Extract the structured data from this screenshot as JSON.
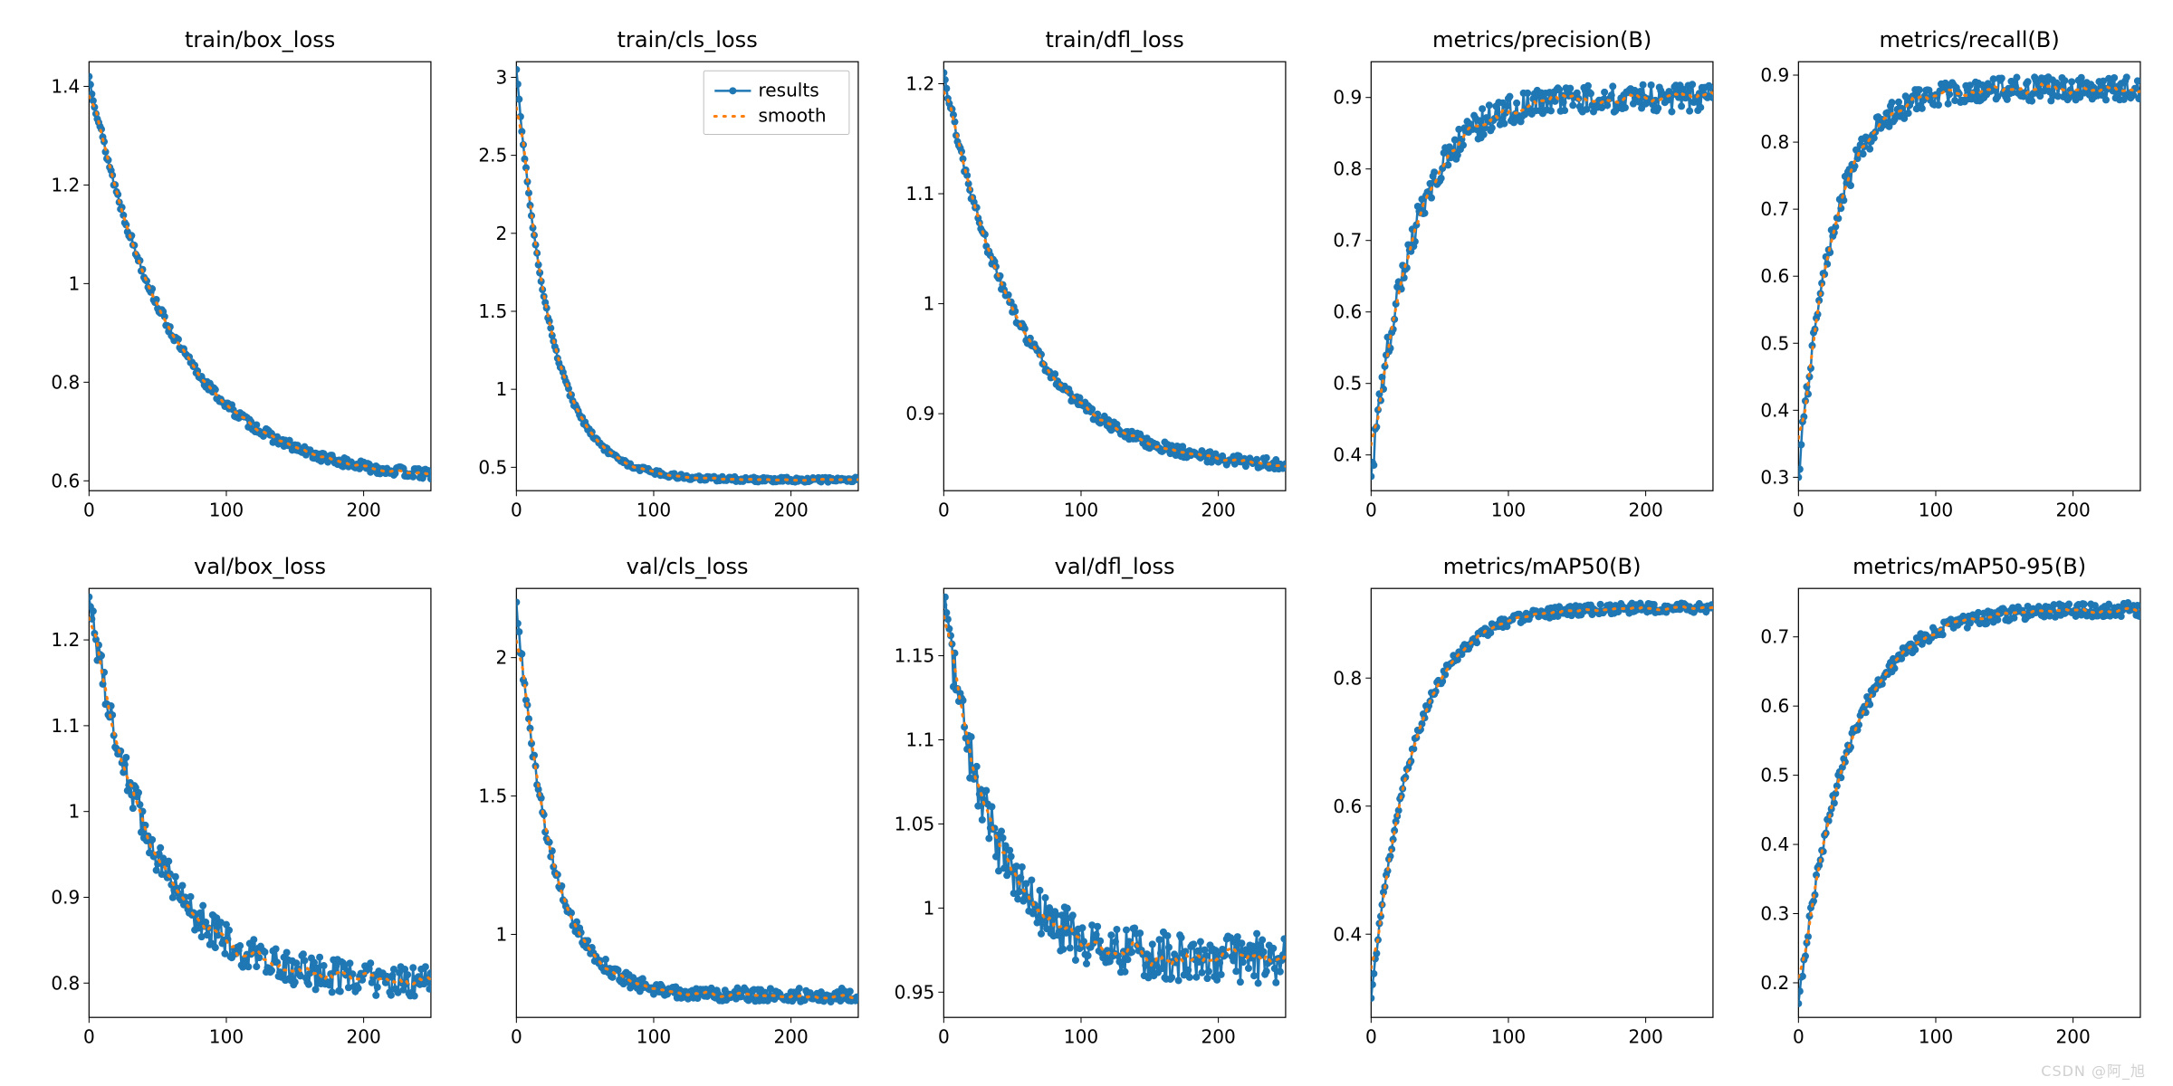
{
  "global": {
    "x_count": 250,
    "xticks": [
      0,
      100,
      200
    ],
    "background_color": "#ffffff",
    "axis_color": "#000000",
    "tick_color": "#000000",
    "tick_fontsize": 20,
    "title_fontsize": 24,
    "results_color": "#1f77b4",
    "smooth_color": "#ff7f0e",
    "marker_radius": 4,
    "line_width": 2.5,
    "smooth_width": 3,
    "smooth_dash": "2,8",
    "watermark": "CSDN @阿_旭"
  },
  "legend": {
    "show_on_index": 1,
    "labels": [
      "results",
      "smooth"
    ],
    "fontsize": 20,
    "border_color": "#bfbfbf",
    "bg_color": "#ffffff"
  },
  "panels": [
    {
      "title": "train/box_loss",
      "yticks": [
        0.6,
        0.8,
        1.0,
        1.2,
        1.4
      ],
      "ylim": [
        0.58,
        1.45
      ],
      "curve": {
        "type": "decay",
        "y0": 1.42,
        "yInf": 0.6,
        "tau": 60,
        "noise": 0.01
      }
    },
    {
      "title": "train/cls_loss",
      "yticks": [
        0.5,
        1.0,
        1.5,
        2.0,
        2.5,
        3.0
      ],
      "ylim": [
        0.35,
        3.1
      ],
      "curve": {
        "type": "decay",
        "y0": 3.05,
        "yInf": 0.42,
        "tau": 25,
        "noise": 0.015
      }
    },
    {
      "title": "train/dfl_loss",
      "yticks": [
        0.9,
        1.0,
        1.1,
        1.2
      ],
      "ylim": [
        0.83,
        1.22
      ],
      "curve": {
        "type": "decay",
        "y0": 1.21,
        "yInf": 0.85,
        "tau": 55,
        "noise": 0.005
      }
    },
    {
      "title": "metrics/precision(B)",
      "yticks": [
        0.4,
        0.5,
        0.6,
        0.7,
        0.8,
        0.9
      ],
      "ylim": [
        0.35,
        0.95
      ],
      "curve": {
        "type": "rise",
        "y0": 0.37,
        "yInf": 0.9,
        "tau": 30,
        "noise": 0.02
      }
    },
    {
      "title": "metrics/recall(B)",
      "yticks": [
        0.3,
        0.4,
        0.5,
        0.6,
        0.7,
        0.8,
        0.9
      ],
      "ylim": [
        0.28,
        0.92
      ],
      "curve": {
        "type": "rise",
        "y0": 0.3,
        "yInf": 0.88,
        "tau": 25,
        "noise": 0.018
      }
    },
    {
      "title": "val/box_loss",
      "yticks": [
        0.8,
        0.9,
        1.0,
        1.1,
        1.2
      ],
      "ylim": [
        0.76,
        1.26
      ],
      "curve": {
        "type": "decay",
        "y0": 1.25,
        "yInf": 0.8,
        "tau": 45,
        "noise": 0.02
      }
    },
    {
      "title": "val/cls_loss",
      "yticks": [
        1.0,
        1.5,
        2.0
      ],
      "ylim": [
        0.7,
        2.25
      ],
      "curve": {
        "type": "decay",
        "y0": 2.2,
        "yInf": 0.78,
        "tau": 25,
        "noise": 0.025
      }
    },
    {
      "title": "val/dfl_loss",
      "yticks": [
        0.95,
        1.0,
        1.05,
        1.1,
        1.15
      ],
      "ylim": [
        0.935,
        1.19
      ],
      "curve": {
        "type": "decay",
        "y0": 1.18,
        "yInf": 0.97,
        "tau": 35,
        "noise": 0.015
      }
    },
    {
      "title": "metrics/mAP50(B)",
      "yticks": [
        0.4,
        0.6,
        0.8
      ],
      "ylim": [
        0.27,
        0.94
      ],
      "curve": {
        "type": "rise",
        "y0": 0.3,
        "yInf": 0.91,
        "tau": 30,
        "noise": 0.008
      }
    },
    {
      "title": "metrics/mAP50-95(B)",
      "yticks": [
        0.2,
        0.3,
        0.4,
        0.5,
        0.6,
        0.7
      ],
      "ylim": [
        0.15,
        0.77
      ],
      "curve": {
        "type": "rise",
        "y0": 0.17,
        "yInf": 0.74,
        "tau": 35,
        "noise": 0.01
      }
    }
  ]
}
